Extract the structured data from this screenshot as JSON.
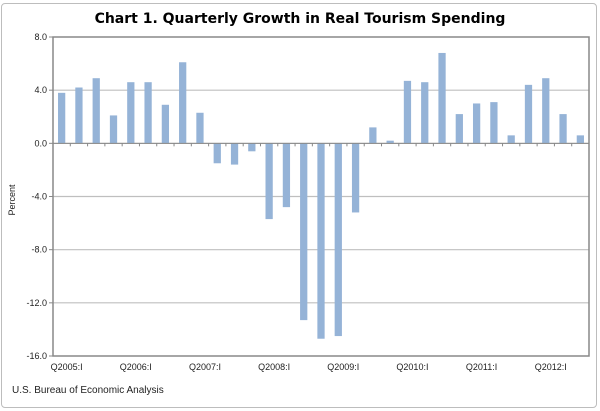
{
  "chart_data": {
    "type": "bar",
    "title": "Chart 1. Quarterly Growth in Real Tourism Spending",
    "xlabel": "",
    "ylabel": "Percent",
    "ylim": [
      -16,
      8
    ],
    "yticks": [
      "8.0",
      "4.0",
      "0.0",
      "-4.0",
      "-8.0",
      "-12.0",
      "-16.0"
    ],
    "ytick_values": [
      8,
      4,
      0,
      -4,
      -8,
      -12,
      -16
    ],
    "xtick_labels": [
      "Q2005:I",
      "Q2006:I",
      "Q2007:I",
      "Q2008:I",
      "Q2009:I",
      "Q2010:I",
      "Q2011:I",
      "Q2012:I"
    ],
    "categories": [
      "Q2005:I",
      "Q2005:II",
      "Q2005:III",
      "Q2005:IV",
      "Q2006:I",
      "Q2006:II",
      "Q2006:III",
      "Q2006:IV",
      "Q2007:I",
      "Q2007:II",
      "Q2007:III",
      "Q2007:IV",
      "Q2008:I",
      "Q2008:II",
      "Q2008:III",
      "Q2008:IV",
      "Q2009:I",
      "Q2009:II",
      "Q2009:III",
      "Q2009:IV",
      "Q2010:I",
      "Q2010:II",
      "Q2010:III",
      "Q2010:IV",
      "Q2011:I",
      "Q2011:II",
      "Q2011:III",
      "Q2011:IV",
      "Q2012:I",
      "Q2012:II",
      "Q2012:III"
    ],
    "values": [
      3.8,
      4.2,
      4.9,
      2.1,
      4.6,
      4.6,
      2.9,
      6.1,
      2.3,
      -1.5,
      -1.6,
      -0.6,
      -5.7,
      -4.8,
      -13.3,
      -14.7,
      -14.5,
      -5.2,
      1.2,
      0.2,
      4.7,
      4.6,
      6.8,
      2.2,
      3.0,
      3.1,
      0.6,
      4.4,
      4.9,
      2.2,
      0.6
    ],
    "grid": true,
    "bar_color": "#95b3d7",
    "source": "U.S. Bureau of Economic Analysis"
  }
}
